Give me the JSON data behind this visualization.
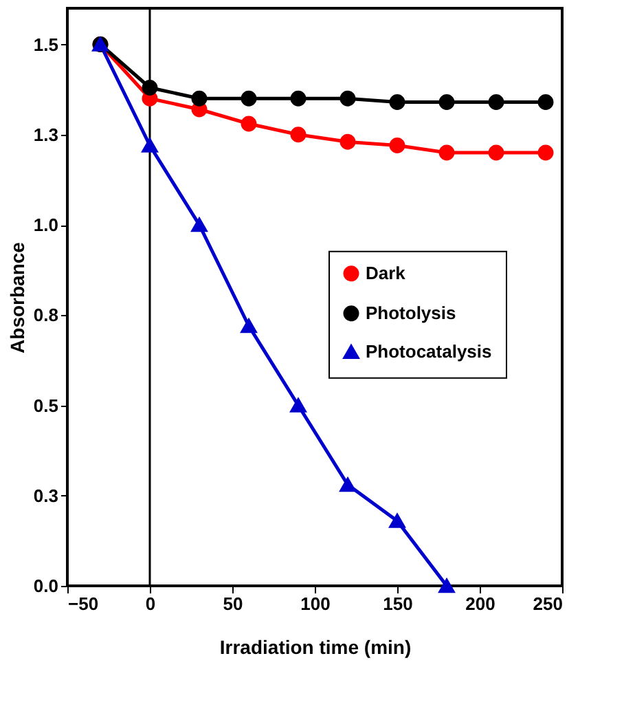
{
  "chart_data": {
    "type": "line",
    "xlabel": "Irradiation time (min)",
    "ylabel": "Absorbance",
    "x": [
      -30,
      0,
      30,
      60,
      90,
      120,
      150,
      180,
      210,
      240
    ],
    "series": [
      {
        "name": "Dark",
        "color": "#ff0000",
        "marker": "circle",
        "values": [
          1.5,
          1.35,
          1.32,
          1.28,
          1.25,
          1.23,
          1.22,
          1.2,
          1.2,
          1.2
        ]
      },
      {
        "name": "Photolysis",
        "color": "#000000",
        "marker": "circle",
        "values": [
          1.5,
          1.38,
          1.35,
          1.35,
          1.35,
          1.35,
          1.34,
          1.34,
          1.34,
          1.34
        ]
      },
      {
        "name": "Photocatalysis",
        "color": "#0000cc",
        "marker": "triangle",
        "x": [
          -30,
          0,
          30,
          60,
          90,
          120,
          150,
          180
        ],
        "values": [
          1.5,
          1.22,
          1.0,
          0.72,
          0.5,
          0.28,
          0.18,
          0.0
        ]
      }
    ],
    "xlim": [
      -50,
      250
    ],
    "xticks": [
      -50,
      0,
      50,
      100,
      150,
      200,
      250
    ],
    "ylim": [
      0,
      1.6
    ],
    "yticks": [
      {
        "value": 0,
        "label": "0.0"
      },
      {
        "value": 0.25,
        "label": "0.3"
      },
      {
        "value": 0.5,
        "label": "0.5"
      },
      {
        "value": 0.75,
        "label": "0.8"
      },
      {
        "value": 1.0,
        "label": "1.0"
      },
      {
        "value": 1.25,
        "label": "1.3"
      },
      {
        "value": 1.5,
        "label": "1.5"
      }
    ],
    "ref_lines": [
      {
        "axis": "x",
        "value": 0,
        "color": "#000000"
      }
    ],
    "grid": false,
    "legend": "right",
    "line_style": "solid"
  }
}
